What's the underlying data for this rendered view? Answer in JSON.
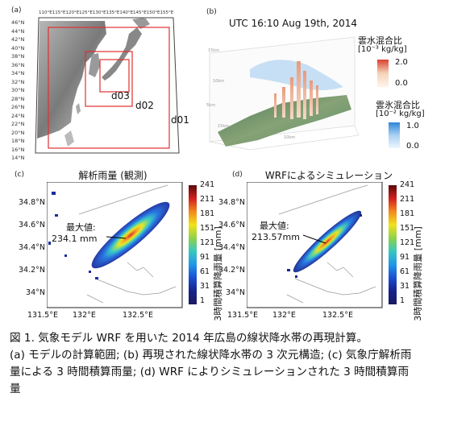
{
  "panel_a": {
    "label": "(a)",
    "top_ticks": "110°E115°E120°E125°E130°E135°E140°E145°E150°E155°E",
    "lat_ticks": [
      "46°N",
      "44°N",
      "42°N",
      "40°N",
      "38°N",
      "36°N",
      "34°N",
      "32°N",
      "30°N",
      "28°N",
      "26°N",
      "24°N",
      "22°N",
      "20°N",
      "18°N",
      "16°N",
      "14°N"
    ],
    "domains": [
      "d01",
      "d02",
      "d03"
    ]
  },
  "panel_b": {
    "label": "(b)",
    "time": "UTC 16:10 Aug 19th, 2014",
    "cloud_water": {
      "title": "雲水混合比",
      "unit": "[10⁻³ kg/kg]",
      "max": "2.0",
      "min": "0.0"
    },
    "cloud_ice": {
      "title": "雲氷混合比",
      "unit": "[10⁻² kg/kg]",
      "max": "1.0",
      "min": "0.0"
    },
    "axis_marks": [
      "15km",
      "10km",
      "5km",
      "15km",
      "10km"
    ]
  },
  "panel_c": {
    "label": "(c)",
    "title": "解析雨量 (観測)",
    "max_label": "最大値:",
    "max_value": "234.1 mm",
    "y_ticks": [
      "34.8°N",
      "34.6°N",
      "34.4°N",
      "34.2°N",
      "34°N"
    ],
    "x_ticks": [
      "131.5°E",
      "132°E",
      "132.5°E"
    ]
  },
  "panel_d": {
    "label": "(d)",
    "title": "WRFによるシミュレーション",
    "max_label": "最大値:",
    "max_value": "213.57mm",
    "y_ticks": [
      "34.8°N",
      "34.6°N",
      "34.4°N",
      "34.2°N",
      "34°N"
    ],
    "x_ticks": [
      "131.5°E",
      "132°E",
      "132.5°E"
    ]
  },
  "colorbar": {
    "ticks": [
      "241",
      "211",
      "181",
      "151",
      "121",
      "91",
      "61",
      "31",
      "1"
    ],
    "label": "3時間積算降雨量 [mm]"
  },
  "caption": {
    "line1": "図 1. 気象モデル WRF を用いた 2014 年広島の線状降水帯の再現計算。",
    "line2": "(a) モデルの計算範囲; (b) 再現された線状降水帯の 3 次元構造; (c) 気象庁解析雨",
    "line3": "量による 3 時間積算雨量; (d) WRF によりシミュレーションされた 3 時間積算雨",
    "line4": "量"
  }
}
